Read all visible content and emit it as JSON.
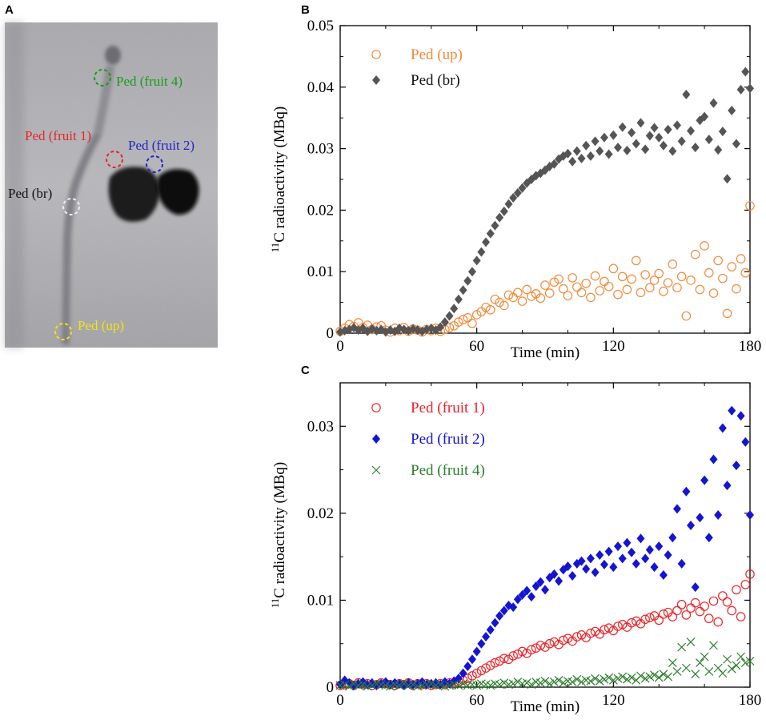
{
  "panels": {
    "a": "A",
    "b": "B",
    "c": "C"
  },
  "image_annotations": [
    {
      "key": "ped_fruit4",
      "label": "Ped (fruit 4)",
      "color": "#1a9a1a"
    },
    {
      "key": "ped_fruit1",
      "label": "Ped (fruit 1)",
      "color": "#e8242a"
    },
    {
      "key": "ped_fruit2",
      "label": "Ped (fruit 2)",
      "color": "#2323c8"
    },
    {
      "key": "ped_br",
      "label": "Ped (br)",
      "color": "#111111"
    },
    {
      "key": "ped_up",
      "label": "Ped (up)",
      "color": "#f2e21a"
    }
  ],
  "chart_data": [
    {
      "id": "B",
      "type": "scatter",
      "title": "",
      "xlabel": "Time (min)",
      "ylabel_sup": "11",
      "ylabel": "C radioactivity (MBq)",
      "xlim": [
        0,
        180
      ],
      "ylim": [
        0,
        0.05
      ],
      "xticks": [
        0,
        60,
        120,
        180
      ],
      "xtick_labels": [
        "0",
        "60",
        "120",
        "180"
      ],
      "yticks": [
        0,
        0.01,
        0.02,
        0.03,
        0.04,
        0.05
      ],
      "ytick_labels": [
        "0",
        "0.01",
        "0.02",
        "0.03",
        "0.04",
        "0.05"
      ],
      "legend_position": "top-left",
      "series": [
        {
          "name": "Ped (up)",
          "marker": "circle-open",
          "color": "#f08a3c",
          "x": [
            0,
            2,
            4,
            6,
            8,
            10,
            12,
            14,
            16,
            18,
            20,
            22,
            24,
            26,
            28,
            30,
            32,
            34,
            36,
            38,
            40,
            42,
            44,
            46,
            48,
            50,
            52,
            54,
            56,
            58,
            60,
            62,
            64,
            66,
            68,
            70,
            72,
            74,
            76,
            78,
            80,
            82,
            84,
            86,
            88,
            90,
            92,
            94,
            96,
            98,
            100,
            102,
            104,
            106,
            108,
            110,
            112,
            114,
            116,
            118,
            120,
            122,
            124,
            126,
            128,
            130,
            132,
            134,
            136,
            138,
            140,
            142,
            144,
            146,
            148,
            150,
            152,
            154,
            156,
            158,
            160,
            162,
            164,
            166,
            168,
            170,
            172,
            174,
            176,
            178,
            180
          ],
          "y": [
            0.0003,
            0.0008,
            0.0014,
            0.0011,
            0.0017,
            0.0009,
            0.0013,
            0.0006,
            0.001,
            0.0012,
            0.0005,
            0.0002,
            0.0008,
            0.0004,
            0.0009,
            0.0003,
            0.0007,
            0.0005,
            0.0002,
            0.0006,
            0.0004,
            0.0008,
            0.0003,
            0.0006,
            0.0009,
            0.0012,
            0.0018,
            0.0022,
            0.0025,
            0.0016,
            0.003,
            0.0035,
            0.0042,
            0.0038,
            0.0055,
            0.005,
            0.0045,
            0.0062,
            0.0058,
            0.0066,
            0.0052,
            0.0071,
            0.006,
            0.0064,
            0.0057,
            0.0078,
            0.0065,
            0.0083,
            0.0088,
            0.0072,
            0.0061,
            0.009,
            0.0075,
            0.0066,
            0.0081,
            0.0058,
            0.0093,
            0.0069,
            0.0084,
            0.0076,
            0.0105,
            0.0063,
            0.0092,
            0.0071,
            0.0088,
            0.0118,
            0.0066,
            0.0095,
            0.0074,
            0.0086,
            0.0097,
            0.0068,
            0.0082,
            0.0112,
            0.0074,
            0.0092,
            0.0028,
            0.0086,
            0.0128,
            0.0071,
            0.0142,
            0.0098,
            0.0065,
            0.0118,
            0.0089,
            0.0032,
            0.0108,
            0.0072,
            0.0121,
            0.0098,
            0.0207
          ]
        },
        {
          "name": "Ped (br)",
          "marker": "diamond-filled",
          "color": "#555555",
          "x": [
            0,
            2,
            4,
            6,
            8,
            10,
            12,
            14,
            16,
            18,
            20,
            22,
            24,
            26,
            28,
            30,
            32,
            34,
            36,
            38,
            40,
            42,
            44,
            46,
            48,
            50,
            52,
            54,
            56,
            58,
            60,
            62,
            64,
            66,
            68,
            70,
            72,
            74,
            76,
            78,
            80,
            82,
            84,
            86,
            88,
            90,
            92,
            94,
            96,
            98,
            100,
            102,
            104,
            106,
            108,
            110,
            112,
            114,
            116,
            118,
            120,
            122,
            124,
            126,
            128,
            130,
            132,
            134,
            136,
            138,
            140,
            142,
            144,
            146,
            148,
            150,
            152,
            154,
            156,
            158,
            160,
            162,
            164,
            166,
            168,
            170,
            172,
            174,
            176,
            178,
            180
          ],
          "y": [
            0.0002,
            0.0004,
            0.0006,
            0.0009,
            0.0005,
            0.0008,
            0.0003,
            0.0007,
            0.0004,
            0.0006,
            0.0002,
            0.0005,
            0.0003,
            0.0008,
            0.0006,
            0.0004,
            0.0007,
            0.0005,
            0.0003,
            0.0006,
            0.0008,
            0.0005,
            0.001,
            0.0018,
            0.0028,
            0.004,
            0.0055,
            0.007,
            0.0085,
            0.01,
            0.0118,
            0.0132,
            0.0148,
            0.0162,
            0.0175,
            0.0188,
            0.0198,
            0.021,
            0.022,
            0.0228,
            0.0236,
            0.0244,
            0.025,
            0.0256,
            0.026,
            0.0265,
            0.0271,
            0.0275,
            0.0283,
            0.0288,
            0.0292,
            0.0279,
            0.0296,
            0.0284,
            0.0305,
            0.0288,
            0.0312,
            0.0296,
            0.0318,
            0.0291,
            0.0322,
            0.0302,
            0.0335,
            0.0297,
            0.0326,
            0.0308,
            0.0342,
            0.0299,
            0.0321,
            0.0334,
            0.0318,
            0.0305,
            0.0331,
            0.0296,
            0.0338,
            0.0312,
            0.0388,
            0.0329,
            0.0302,
            0.0346,
            0.0352,
            0.0315,
            0.0374,
            0.0298,
            0.0328,
            0.0251,
            0.0362,
            0.0308,
            0.0396,
            0.0425,
            0.0398
          ]
        }
      ]
    },
    {
      "id": "C",
      "type": "scatter",
      "title": "",
      "xlabel": "Time (min)",
      "ylabel_sup": "11",
      "ylabel": "C radioactivity (MBq)",
      "xlim": [
        0,
        180
      ],
      "ylim": [
        0,
        0.035
      ],
      "xticks": [
        0,
        60,
        120,
        180
      ],
      "xtick_labels": [
        "0",
        "60",
        "120",
        "180"
      ],
      "yticks": [
        0,
        0.01,
        0.02,
        0.03
      ],
      "ytick_labels": [
        "0",
        "0.01",
        "0.02",
        "0.03"
      ],
      "legend_position": "top-left",
      "series": [
        {
          "name": "Ped (fruit 1)",
          "marker": "circle-open",
          "color": "#e8242a",
          "x": [
            0,
            2,
            4,
            6,
            8,
            10,
            12,
            14,
            16,
            18,
            20,
            22,
            24,
            26,
            28,
            30,
            32,
            34,
            36,
            38,
            40,
            42,
            44,
            46,
            48,
            50,
            52,
            54,
            56,
            58,
            60,
            62,
            64,
            66,
            68,
            70,
            72,
            74,
            76,
            78,
            80,
            82,
            84,
            86,
            88,
            90,
            92,
            94,
            96,
            98,
            100,
            102,
            104,
            106,
            108,
            110,
            112,
            114,
            116,
            118,
            120,
            122,
            124,
            126,
            128,
            130,
            132,
            134,
            136,
            138,
            140,
            142,
            144,
            146,
            148,
            150,
            152,
            154,
            156,
            158,
            160,
            162,
            164,
            166,
            168,
            170,
            172,
            174,
            176,
            178,
            180
          ],
          "y": [
            0.0002,
            0.0003,
            0.0004,
            0.0002,
            0.0005,
            0.0003,
            0.0004,
            0.0002,
            0.0003,
            0.0005,
            0.0004,
            0.0003,
            0.0002,
            0.0004,
            0.0003,
            0.0005,
            0.0002,
            0.0004,
            0.0003,
            0.0004,
            0.0002,
            0.0003,
            0.0004,
            0.0003,
            0.0005,
            0.0004,
            0.0006,
            0.0008,
            0.001,
            0.0013,
            0.0016,
            0.0019,
            0.0022,
            0.0025,
            0.0028,
            0.003,
            0.0033,
            0.0032,
            0.0036,
            0.0038,
            0.0041,
            0.0039,
            0.0043,
            0.0045,
            0.0048,
            0.0046,
            0.005,
            0.0052,
            0.0049,
            0.0054,
            0.0056,
            0.0053,
            0.0058,
            0.006,
            0.0057,
            0.0062,
            0.0064,
            0.0061,
            0.0066,
            0.0068,
            0.0065,
            0.007,
            0.0072,
            0.0069,
            0.0074,
            0.0076,
            0.0073,
            0.0078,
            0.008,
            0.0082,
            0.0077,
            0.0084,
            0.0086,
            0.0081,
            0.0088,
            0.0095,
            0.0083,
            0.0091,
            0.0097,
            0.0087,
            0.0093,
            0.0079,
            0.0099,
            0.0075,
            0.0105,
            0.0098,
            0.0088,
            0.0112,
            0.0081,
            0.0118,
            0.013
          ]
        },
        {
          "name": "Ped (fruit 2)",
          "marker": "diamond-filled",
          "color": "#1414d2",
          "x": [
            0,
            2,
            4,
            6,
            8,
            10,
            12,
            14,
            16,
            18,
            20,
            22,
            24,
            26,
            28,
            30,
            32,
            34,
            36,
            38,
            40,
            42,
            44,
            46,
            48,
            50,
            52,
            54,
            56,
            58,
            60,
            62,
            64,
            66,
            68,
            70,
            72,
            74,
            76,
            78,
            80,
            82,
            84,
            86,
            88,
            90,
            92,
            94,
            96,
            98,
            100,
            102,
            104,
            106,
            108,
            110,
            112,
            114,
            116,
            118,
            120,
            122,
            124,
            126,
            128,
            130,
            132,
            134,
            136,
            138,
            140,
            142,
            144,
            146,
            148,
            150,
            152,
            154,
            156,
            158,
            160,
            162,
            164,
            166,
            168,
            170,
            172,
            174,
            176,
            178,
            180
          ],
          "y": [
            0.0003,
            0.0008,
            0.0005,
            0.0002,
            0.0004,
            0.0006,
            0.0003,
            0.0005,
            0.0002,
            0.0004,
            0.0006,
            0.0003,
            0.0005,
            0.0004,
            0.0002,
            0.0005,
            0.0003,
            0.0004,
            0.0006,
            0.0003,
            0.0004,
            0.0005,
            0.0003,
            0.0006,
            0.0004,
            0.0007,
            0.001,
            0.0016,
            0.0024,
            0.0032,
            0.0041,
            0.005,
            0.0058,
            0.0066,
            0.0074,
            0.0082,
            0.0088,
            0.0094,
            0.0092,
            0.0101,
            0.0106,
            0.0111,
            0.0104,
            0.0116,
            0.0121,
            0.0112,
            0.0126,
            0.013,
            0.0122,
            0.0135,
            0.0139,
            0.0128,
            0.0142,
            0.0145,
            0.0136,
            0.0148,
            0.0132,
            0.0152,
            0.0141,
            0.0156,
            0.0138,
            0.0162,
            0.0148,
            0.0166,
            0.0155,
            0.0142,
            0.0171,
            0.0148,
            0.0158,
            0.0138,
            0.0162,
            0.0129,
            0.0152,
            0.0172,
            0.0205,
            0.0142,
            0.0225,
            0.0186,
            0.0115,
            0.0195,
            0.0238,
            0.0172,
            0.0262,
            0.0198,
            0.0298,
            0.0232,
            0.0318,
            0.0255,
            0.0312,
            0.0282,
            0.0198
          ]
        },
        {
          "name": "Ped (fruit 4)",
          "marker": "x",
          "color": "#2e7d2e",
          "x": [
            0,
            2,
            4,
            6,
            8,
            10,
            12,
            14,
            16,
            18,
            20,
            22,
            24,
            26,
            28,
            30,
            32,
            34,
            36,
            38,
            40,
            42,
            44,
            46,
            48,
            50,
            52,
            54,
            56,
            58,
            60,
            62,
            64,
            66,
            68,
            70,
            72,
            74,
            76,
            78,
            80,
            82,
            84,
            86,
            88,
            90,
            92,
            94,
            96,
            98,
            100,
            102,
            104,
            106,
            108,
            110,
            112,
            114,
            116,
            118,
            120,
            122,
            124,
            126,
            128,
            130,
            132,
            134,
            136,
            138,
            140,
            142,
            144,
            146,
            148,
            150,
            152,
            154,
            156,
            158,
            160,
            162,
            164,
            166,
            168,
            170,
            172,
            174,
            176,
            178,
            180
          ],
          "y": [
            0.0002,
            0.0003,
            0.0001,
            0.0004,
            0.0002,
            0.0003,
            0.0001,
            0.0002,
            0.0004,
            0.0003,
            0.0002,
            0.0001,
            0.0003,
            0.0002,
            0.0004,
            0.0002,
            0.0003,
            0.0001,
            0.0002,
            0.0003,
            0.0004,
            0.0002,
            0.0003,
            0.0001,
            0.0002,
            0.0003,
            0.0002,
            0.0004,
            0.0002,
            0.0003,
            0.0002,
            0.0004,
            0.0003,
            0.0002,
            0.0004,
            0.0003,
            0.0005,
            0.0003,
            0.0004,
            0.0006,
            0.0004,
            0.0005,
            0.0003,
            0.0006,
            0.0005,
            0.0007,
            0.0004,
            0.0006,
            0.0008,
            0.0005,
            0.0007,
            0.0006,
            0.0009,
            0.0006,
            0.0008,
            0.0007,
            0.001,
            0.0007,
            0.0009,
            0.0011,
            0.0008,
            0.001,
            0.0012,
            0.0009,
            0.0011,
            0.0008,
            0.0013,
            0.001,
            0.0012,
            0.0014,
            0.0011,
            0.0015,
            0.0012,
            0.0028,
            0.0018,
            0.0046,
            0.0022,
            0.0052,
            0.0015,
            0.0028,
            0.0035,
            0.0018,
            0.0048,
            0.0022,
            0.0016,
            0.0032,
            0.0021,
            0.0025,
            0.0035,
            0.0028,
            0.003
          ]
        }
      ]
    }
  ]
}
